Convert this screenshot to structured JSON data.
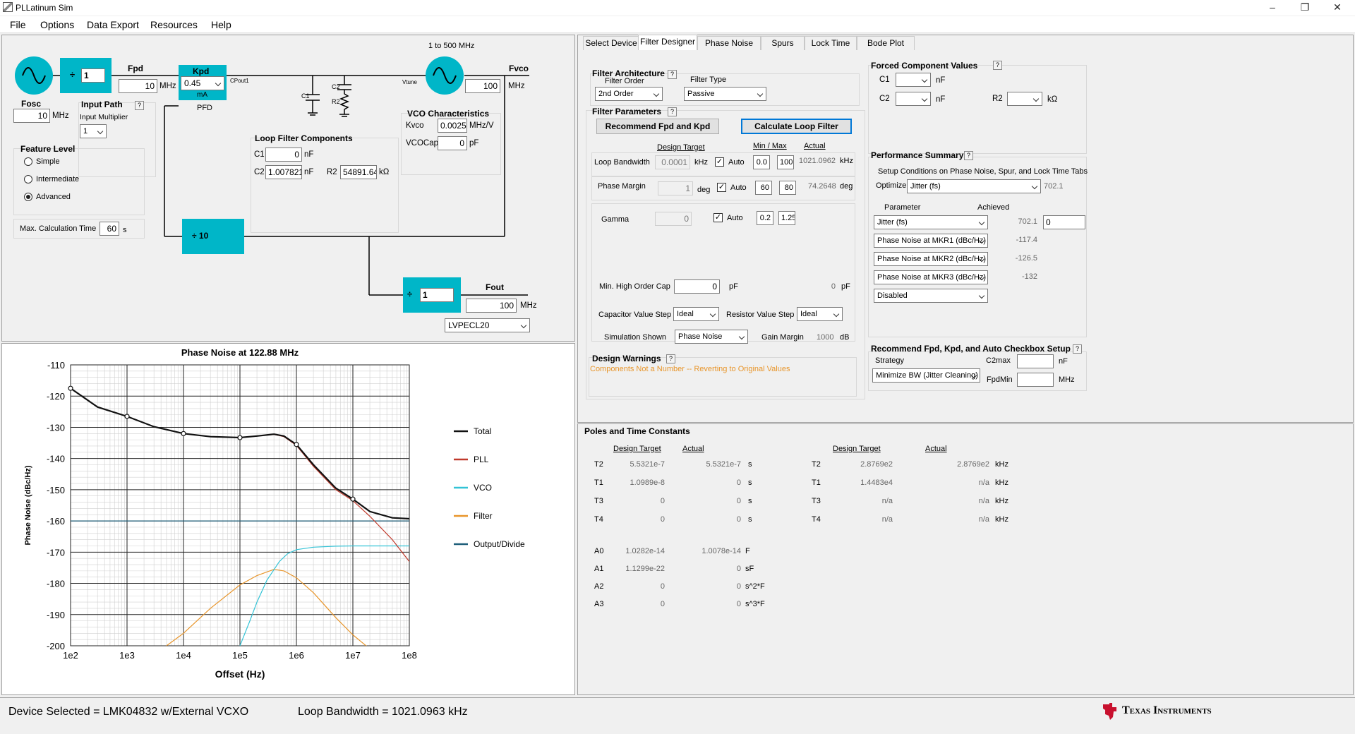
{
  "window": {
    "title": "PLLatinum Sim",
    "minimize": "–",
    "maximize": "❐",
    "close": "✕"
  },
  "menu": [
    "File",
    "Options",
    "Data Export",
    "Resources",
    "Help"
  ],
  "schematic": {
    "range_label": "1 to 500 MHz",
    "r_divider": "1",
    "fpd_label": "Fpd",
    "fpd_value": "10",
    "fpd_unit": "MHz",
    "kpd_label": "Kpd",
    "kpd_value": "0.45",
    "kpd_unit": "mA",
    "pfd_label": "PFD",
    "cpout_label": "CPout1",
    "vtune_label": "Vtune",
    "c1_label": "C1",
    "c2_label": "C2",
    "r2_label": "R2",
    "fvco_label": "Fvco",
    "fvco_value": "100",
    "fvco_unit": "MHz",
    "fosc_label": "Fosc",
    "fosc_value": "10",
    "fosc_unit": "MHz",
    "input_path_label": "Input Path",
    "input_mult_label": "Input Multiplier",
    "input_mult_value": "1",
    "feature_level_label": "Feature Level",
    "feature_levels": [
      {
        "label": "Simple",
        "selected": false
      },
      {
        "label": "Intermediate",
        "selected": false
      },
      {
        "label": "Advanced",
        "selected": true
      }
    ],
    "max_calc_label": "Max. Calculation Time",
    "max_calc_value": "60",
    "max_calc_unit": "s",
    "loop_filter_title": "Loop Filter Components",
    "lf_c1_label": "C1",
    "lf_c1_value": "0",
    "lf_c1_unit": "nF",
    "lf_c2_label": "C2",
    "lf_c2_value": "1.007821",
    "lf_c2_unit": "nF",
    "lf_r2_label": "R2",
    "lf_r2_value": "54891.64",
    "lf_r2_unit": "kΩ",
    "vco_title": "VCO Characteristics",
    "kvco_label": "Kvco",
    "kvco_value": "0.0025",
    "kvco_unit": "MHz/V",
    "vcocap_label": "VCOCap",
    "vcocap_value": "0",
    "vcocap_unit": "pF",
    "n_divider": "÷ 10",
    "out_divider": "1",
    "fout_label": "Fout",
    "fout_value": "100",
    "fout_unit": "MHz",
    "output_format": "LVPECL20",
    "divide_symbol": "÷"
  },
  "chart_data": {
    "type": "line",
    "title": "Phase Noise at 122.88 MHz",
    "xlabel": "Offset (Hz)",
    "ylabel": "Phase Noise (dBc/Hz)",
    "x_scale": "log",
    "xlim": [
      100,
      100000000
    ],
    "ylim": [
      -200,
      -110
    ],
    "x_ticks": [
      "1e2",
      "1e3",
      "1e4",
      "1e5",
      "1e6",
      "1e7",
      "1e8"
    ],
    "y_ticks": [
      "-110",
      "-120",
      "-130",
      "-140",
      "-150",
      "-160",
      "-170",
      "-180",
      "-190",
      "-200"
    ],
    "grid": true,
    "legend_position": "right",
    "series": [
      {
        "name": "Total",
        "color": "#111111",
        "x": [
          100,
          300,
          1000,
          3000,
          10000,
          30000,
          100000,
          200000,
          400000,
          600000,
          1000000,
          2000000,
          5000000,
          10000000,
          20000000,
          50000000,
          100000000
        ],
        "y": [
          -117.5,
          -123.5,
          -126.5,
          -129.8,
          -132,
          -133,
          -133.3,
          -132.8,
          -132.2,
          -132.8,
          -135.5,
          -142,
          -149.5,
          -153,
          -157,
          -159,
          -159.3
        ],
        "markers": [
          100,
          1000,
          10000,
          100000,
          1000000,
          10000000
        ]
      },
      {
        "name": "PLL",
        "color": "#c0392b",
        "x": [
          100,
          300,
          1000,
          3000,
          10000,
          30000,
          100000,
          200000,
          400000,
          600000,
          1000000,
          2000000,
          5000000,
          10000000,
          20000000,
          50000000,
          100000000
        ],
        "y": [
          -117.5,
          -123.5,
          -126.5,
          -129.8,
          -132,
          -133,
          -133.3,
          -132.8,
          -132.3,
          -133,
          -135.8,
          -142.5,
          -150,
          -153.5,
          -158.5,
          -166,
          -173
        ]
      },
      {
        "name": "VCO",
        "color": "#33c3d6",
        "x": [
          100000,
          150000,
          200000,
          300000,
          500000,
          700000,
          1000000,
          2000000,
          5000000,
          10000000,
          100000000
        ],
        "y": [
          -200,
          -192,
          -186,
          -179,
          -173,
          -170.5,
          -169.2,
          -168.4,
          -168.1,
          -168,
          -168
        ]
      },
      {
        "name": "Filter",
        "color": "#e8952a",
        "x": [
          5000,
          10000,
          30000,
          100000,
          200000,
          400000,
          600000,
          1000000,
          2000000,
          5000000,
          10000000,
          20000000
        ],
        "y": [
          -200,
          -196,
          -188,
          -180.5,
          -177.5,
          -175.5,
          -176,
          -178.2,
          -183,
          -191,
          -196.5,
          -201
        ]
      },
      {
        "name": "Output/Divide",
        "color": "#1f5f7a",
        "x": [
          100,
          100000000
        ],
        "y": [
          -160,
          -160
        ]
      }
    ]
  },
  "tabs": [
    {
      "label": "Select Device",
      "active": false
    },
    {
      "label": "Filter Designer",
      "active": true
    },
    {
      "label": "Phase Noise",
      "active": false
    },
    {
      "label": "Spurs",
      "active": false
    },
    {
      "label": "Lock Time",
      "active": false
    },
    {
      "label": "Bode Plot",
      "active": false
    }
  ],
  "filter_arch": {
    "title": "Filter Architecture",
    "order_label": "Filter Order",
    "order_value": "2nd Order",
    "type_label": "Filter Type",
    "type_value": "Passive"
  },
  "forced": {
    "title": "Forced Component Values",
    "c1_label": "C1",
    "c1_unit": "nF",
    "c2_label": "C2",
    "c2_unit": "nF",
    "r2_label": "R2",
    "r2_unit": "kΩ"
  },
  "filter_params": {
    "title": "Filter Parameters",
    "recommend_button": "Recommend Fpd and Kpd",
    "calculate_button": "Calculate Loop Filter",
    "design_target_hdr": "Design Target",
    "minmax_hdr": "Min  /  Max",
    "actual_hdr": "Actual",
    "loop_bw_label": "Loop Bandwidth",
    "loop_bw_target": "0.0001",
    "loop_bw_unit": "kHz",
    "auto_label": "Auto",
    "loop_bw_min": "0.0",
    "loop_bw_max": "100",
    "loop_bw_actual": "1021.0962",
    "loop_bw_actual_unit": "kHz",
    "pm_label": "Phase Margin",
    "pm_target": "1",
    "pm_unit": "deg",
    "pm_min": "60",
    "pm_max": "80",
    "pm_actual": "74.2648",
    "pm_actual_unit": "deg",
    "gamma_label": "Gamma",
    "gamma_target": "0",
    "gamma_min": "0.2",
    "gamma_max": "1.25",
    "min_cap_label": "Min. High Order Cap",
    "min_cap_value": "0",
    "min_cap_unit": "pF",
    "min_cap_actual": "0",
    "min_cap_actual_unit": "pF",
    "cap_step_label": "Capacitor Value Step",
    "cap_step_value": "Ideal",
    "res_step_label": "Resistor Value Step",
    "res_step_value": "Ideal",
    "sim_label": "Simulation Shown",
    "sim_value": "Phase Noise",
    "gain_margin_label": "Gain Margin",
    "gain_margin_value": "1000",
    "gain_margin_unit": "dB"
  },
  "warnings": {
    "title": "Design Warnings",
    "text": "Components Not a Number -- Reverting to Original Values",
    "color": "#e8952a"
  },
  "perf": {
    "title": "Performance Summary",
    "setup_text": "Setup Conditions on Phase Noise, Spur, and Lock Time Tabs",
    "optimize_label": "Optimize",
    "optimize_value": "Jitter (fs)",
    "optimize_result": "702.1",
    "param_hdr": "Parameter",
    "achieved_hdr": "Achieved",
    "rows": [
      {
        "param": "Jitter (fs)",
        "achieved": "702.1",
        "target": "0"
      },
      {
        "param": "Phase Noise at MKR1 (dBc/Hz)",
        "achieved": "-117.4"
      },
      {
        "param": "Phase Noise at MKR2 (dBc/Hz)",
        "achieved": "-126.5"
      },
      {
        "param": "Phase Noise at MKR3 (dBc/Hz)",
        "achieved": "-132"
      },
      {
        "param": "Disabled",
        "achieved": ""
      }
    ]
  },
  "recommend": {
    "title": "Recommend Fpd, Kpd, and Auto Checkbox Setup",
    "strategy_label": "Strategy",
    "strategy_value": "Minimize BW (Jitter Cleaning)",
    "c2max_label": "C2max",
    "c2max_unit": "nF",
    "fpdmin_label": "FpdMin",
    "fpdmin_unit": "MHz"
  },
  "poles": {
    "title": "Poles and Time Constants",
    "design_hdr": "Design Target",
    "actual_hdr": "Actual",
    "left": [
      {
        "name": "T2",
        "design": "5.5321e-7",
        "actual": "5.5321e-7",
        "unit": "s"
      },
      {
        "name": "T1",
        "design": "1.0989e-8",
        "actual": "0",
        "unit": "s"
      },
      {
        "name": "T3",
        "design": "0",
        "actual": "0",
        "unit": "s"
      },
      {
        "name": "T4",
        "design": "0",
        "actual": "0",
        "unit": "s"
      }
    ],
    "right": [
      {
        "name": "T2",
        "design": "2.8769e2",
        "actual": "2.8769e2",
        "unit": "kHz"
      },
      {
        "name": "T1",
        "design": "1.4483e4",
        "actual": "n/a",
        "unit": "kHz"
      },
      {
        "name": "T3",
        "design": "n/a",
        "actual": "n/a",
        "unit": "kHz"
      },
      {
        "name": "T4",
        "design": "n/a",
        "actual": "n/a",
        "unit": "kHz"
      }
    ],
    "a_rows": [
      {
        "name": "A0",
        "design": "1.0282e-14",
        "actual": "1.0078e-14",
        "unit": "F"
      },
      {
        "name": "A1",
        "design": "1.1299e-22",
        "actual": "0",
        "unit": "sF"
      },
      {
        "name": "A2",
        "design": "0",
        "actual": "0",
        "unit": "s^2*F"
      },
      {
        "name": "A3",
        "design": "0",
        "actual": "0",
        "unit": "s^3*F"
      }
    ]
  },
  "status": {
    "device": "Device Selected = LMK04832 w/External VCXO",
    "loop_bw": "Loop Bandwidth = 1021.0963 kHz",
    "brand": "Texas Instruments",
    "brand_color": "#c8102e"
  },
  "help_glyph": "?",
  "check_glyph": "✓"
}
